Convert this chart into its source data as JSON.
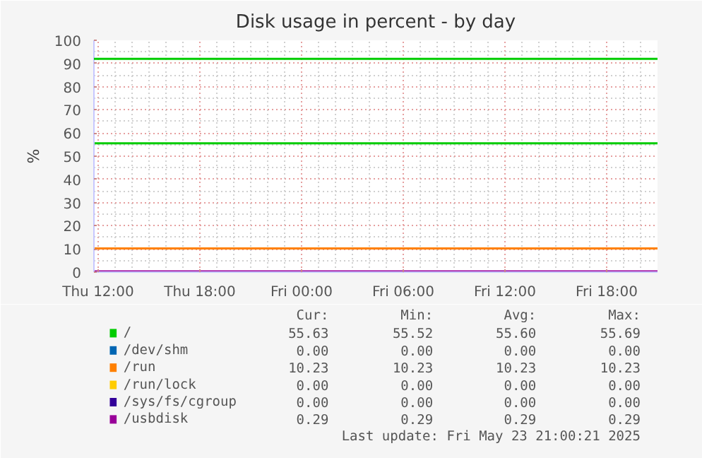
{
  "chart_data": {
    "type": "line",
    "title": "Disk usage in percent - by day",
    "ylabel": "%",
    "x": [
      "2025-05-22T11:45",
      "2025-05-23T21:00"
    ],
    "xlim": [
      "2025-05-22T11:45",
      "2025-05-23T21:00"
    ],
    "xticks": [
      {
        "value": "2025-05-22T12:00",
        "label": "Thu 12:00"
      },
      {
        "value": "2025-05-22T18:00",
        "label": "Thu 18:00"
      },
      {
        "value": "2025-05-23T00:00",
        "label": "Fri 00:00"
      },
      {
        "value": "2025-05-23T06:00",
        "label": "Fri 06:00"
      },
      {
        "value": "2025-05-23T12:00",
        "label": "Fri 12:00"
      },
      {
        "value": "2025-05-23T18:00",
        "label": "Fri 18:00"
      }
    ],
    "ylim": [
      0,
      100
    ],
    "yticks": [
      0,
      10,
      20,
      30,
      40,
      50,
      60,
      70,
      80,
      90,
      100
    ],
    "grid": true,
    "legend": "bottom",
    "ref_lines": [
      {
        "axis": "y",
        "value": 92,
        "label": null,
        "color": "#00cc00"
      }
    ],
    "series": [
      {
        "name": "/",
        "color": "#00cc00",
        "values": [
          55.6,
          55.6
        ]
      },
      {
        "name": "/dev/shm",
        "color": "#0066b3",
        "values": [
          null,
          null
        ]
      },
      {
        "name": "/run",
        "color": "#ff8000",
        "values": [
          10.2,
          10.2
        ]
      },
      {
        "name": "/run/lock",
        "color": "#ffcc00",
        "values": [
          null,
          null
        ]
      },
      {
        "name": "/sys/fs/cgroup",
        "color": "#330099",
        "values": [
          null,
          null
        ]
      },
      {
        "name": "/usbdisk",
        "color": "#990099",
        "values": [
          0.3,
          0.3
        ]
      }
    ],
    "annotations": [
      "Cur:",
      "Min:",
      "Avg:",
      "Max:",
      "55.63",
      "55.52",
      "55.60",
      "55.69",
      "0.00",
      "0.00",
      "0.00",
      "0.00",
      "10.23",
      "10.23",
      "10.23",
      "10.23",
      "0.00",
      "0.00",
      "0.00",
      "0.00",
      "0.00",
      "0.00",
      "0.00",
      "0.00",
      "0.29",
      "0.29",
      "0.29",
      "0.29",
      "Last update: Fri May 23 21:00:21 2025"
    ]
  }
}
